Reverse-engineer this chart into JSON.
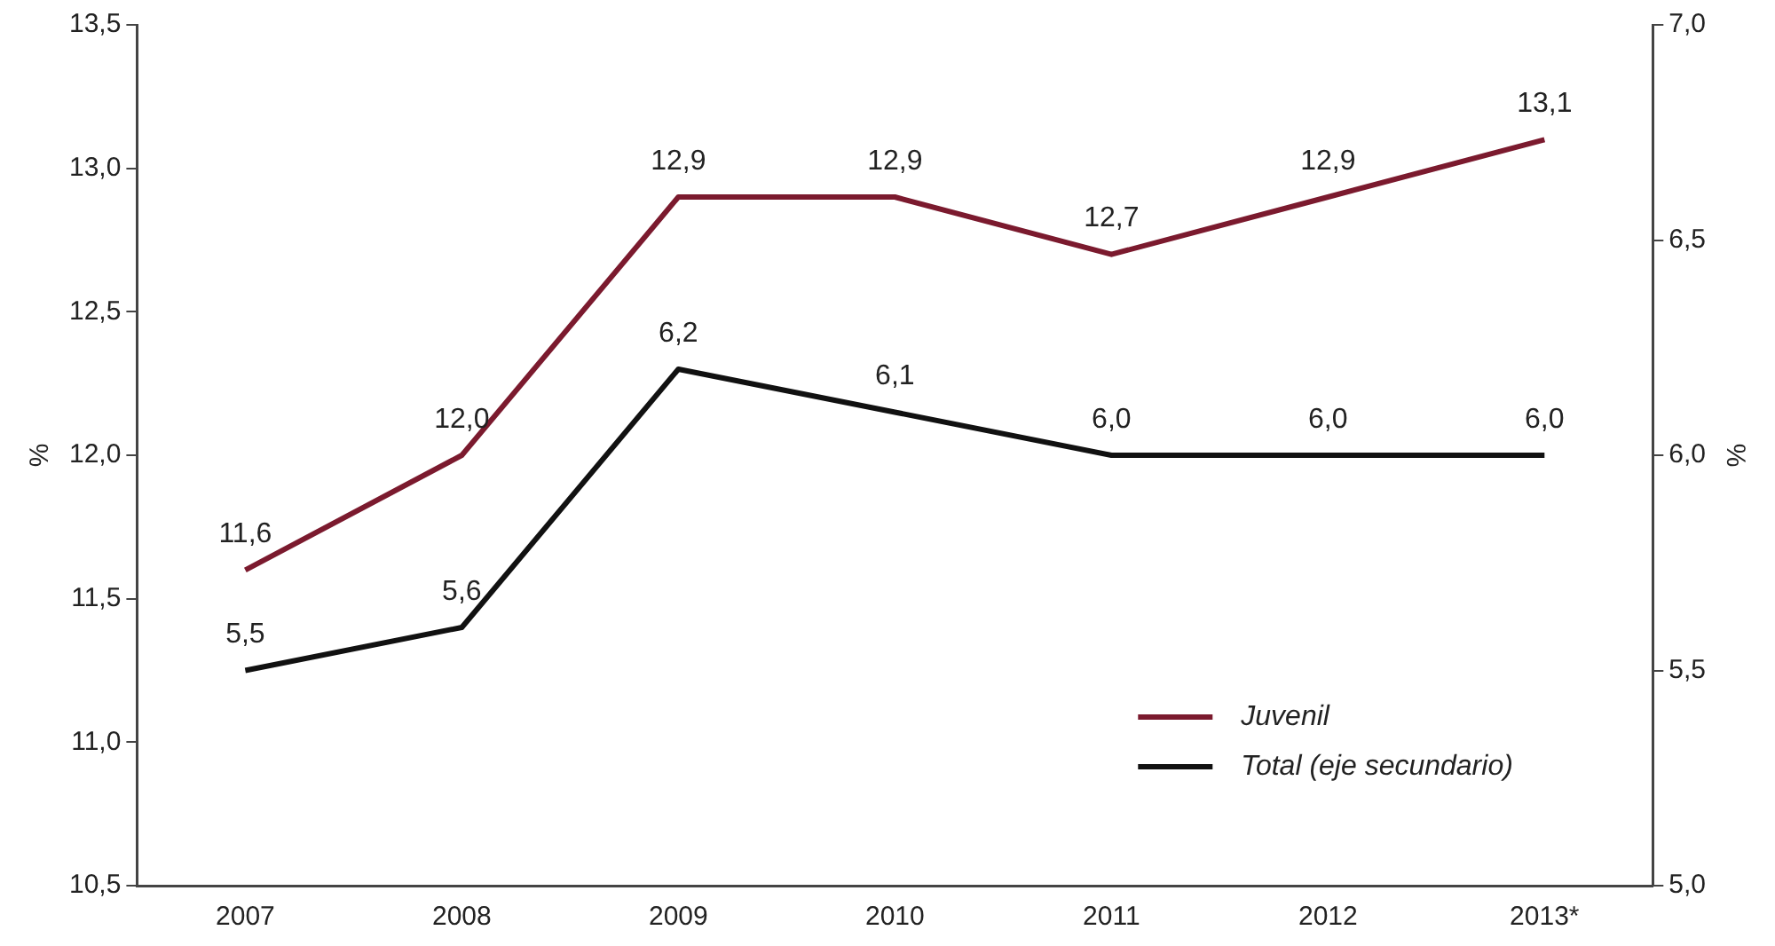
{
  "chart_data": {
    "type": "line",
    "categories": [
      "2007",
      "2008",
      "2009",
      "2010",
      "2011",
      "2012",
      "2013*"
    ],
    "ylabel": "%",
    "y2label": "%",
    "ylim": [
      10.5,
      13.5
    ],
    "yticks": [
      {
        "value": 10.5,
        "label": "10,5"
      },
      {
        "value": 11,
        "label": "11,0"
      },
      {
        "value": 11.5,
        "label": "11,5"
      },
      {
        "value": 12,
        "label": "12,0"
      },
      {
        "value": 12.5,
        "label": "12,5"
      },
      {
        "value": 13,
        "label": "13,0"
      },
      {
        "value": 13.5,
        "label": "13,5"
      }
    ],
    "y2lim": [
      5,
      7
    ],
    "y2ticks": [
      {
        "value": 5,
        "label": "5,0"
      },
      {
        "value": 5.5,
        "label": "5,5"
      },
      {
        "value": 6,
        "label": "6,0"
      },
      {
        "value": 6.5,
        "label": "6,5"
      },
      {
        "value": 7,
        "label": "7,0"
      }
    ],
    "series": [
      {
        "name": "Juvenil",
        "color": "#7b1a2e",
        "values": [
          11.6,
          12.0,
          12.9,
          12.9,
          12.7,
          12.9,
          13.1
        ],
        "value_labels": [
          "11,6",
          "12,0",
          "12,9",
          "12,9",
          "12,7",
          "12,9",
          "13,1"
        ]
      },
      {
        "name": "Total (eje secundario)",
        "color": "#111111",
        "axis": "y2",
        "values": [
          5.5,
          5.6,
          6.2,
          6.1,
          6.0,
          6.0,
          6.0
        ],
        "value_labels": [
          "5,5",
          "5,6",
          "6,2",
          "6,1",
          "6,0",
          "6,0",
          "6,0"
        ]
      }
    ],
    "grid": false,
    "legend": "bottom right",
    "marker": "none",
    "line_style": "solid"
  }
}
